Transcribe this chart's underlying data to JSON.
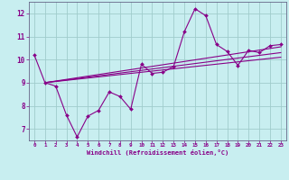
{
  "xlabel": "Windchill (Refroidissement éolien,°C)",
  "bg_color": "#c8eef0",
  "line_color": "#880088",
  "grid_color": "#a0cccc",
  "xlim": [
    -0.5,
    23.5
  ],
  "ylim": [
    6.5,
    12.5
  ],
  "xticks": [
    0,
    1,
    2,
    3,
    4,
    5,
    6,
    7,
    8,
    9,
    10,
    11,
    12,
    13,
    14,
    15,
    16,
    17,
    18,
    19,
    20,
    21,
    22,
    23
  ],
  "yticks": [
    7,
    8,
    9,
    10,
    11,
    12
  ],
  "main_x": [
    0,
    1,
    2,
    3,
    4,
    5,
    6,
    7,
    8,
    9,
    10,
    11,
    12,
    13,
    14,
    15,
    16,
    17,
    18,
    19,
    20,
    21,
    22,
    23
  ],
  "main_y": [
    10.2,
    9.0,
    8.85,
    7.6,
    6.65,
    7.55,
    7.8,
    8.6,
    8.4,
    7.85,
    9.8,
    9.4,
    9.45,
    9.7,
    11.2,
    12.2,
    11.9,
    10.65,
    10.35,
    9.75,
    10.4,
    10.3,
    10.6,
    10.65
  ],
  "trend1_x": [
    1,
    23
  ],
  "trend1_y": [
    9.0,
    10.1
  ],
  "trend2_x": [
    1,
    23
  ],
  "trend2_y": [
    9.0,
    10.55
  ],
  "trend3_x": [
    1,
    23
  ],
  "trend3_y": [
    9.0,
    10.3
  ]
}
